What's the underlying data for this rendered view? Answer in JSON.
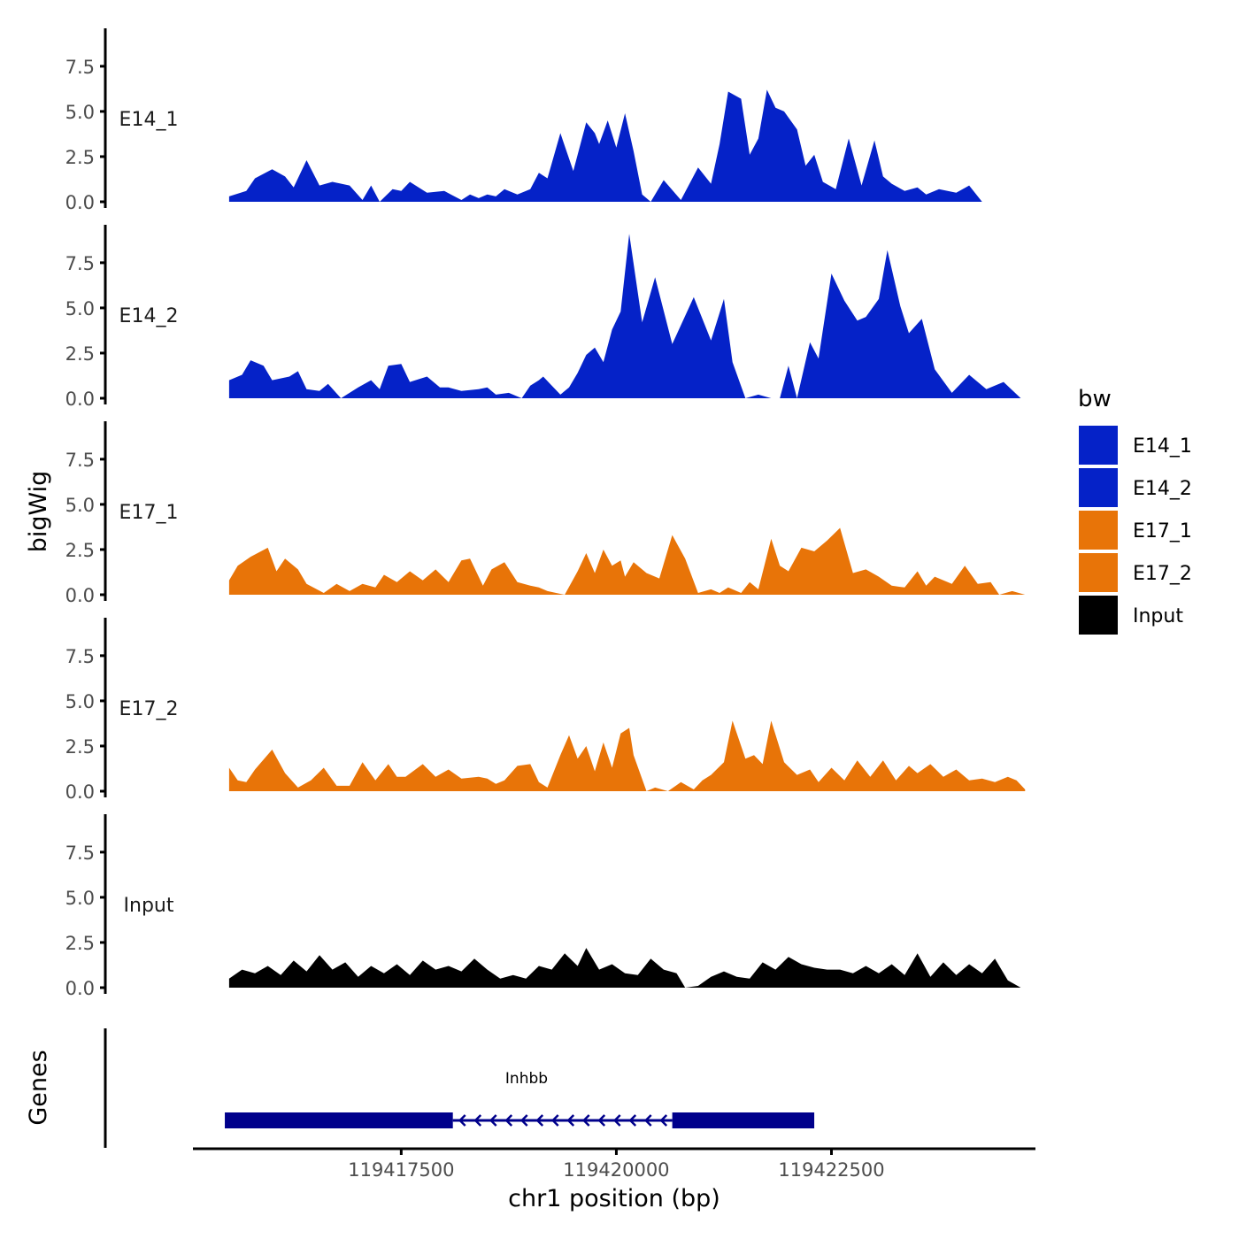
{
  "chart_data": {
    "type": "area",
    "ylabel": "bigWig",
    "xlabel": "chr1 position (bp)",
    "x_range": [
      119415100,
      119424850
    ],
    "ylim": [
      0,
      9.6
    ],
    "y_ticks": [
      0,
      2.5,
      5,
      7.5
    ],
    "y_tick_labels": [
      "0.0",
      "2.5",
      "5.0",
      "7.5"
    ],
    "x_ticks": [
      119417500,
      119420000,
      119422500
    ],
    "x_tick_labels": [
      "119417500",
      "119420000",
      "119422500"
    ],
    "legend": {
      "title": "bw",
      "position": "right",
      "entries": [
        {
          "label": "E14_1",
          "color": "#0522C8"
        },
        {
          "label": "E14_2",
          "color": "#0522C8"
        },
        {
          "label": "E17_1",
          "color": "#E87408"
        },
        {
          "label": "E17_2",
          "color": "#E87408"
        },
        {
          "label": "Input",
          "color": "#000000"
        }
      ]
    },
    "series": [
      {
        "name": "E14_1",
        "color": "#0522C8",
        "x": [
          119415500,
          119415700,
          119415800,
          119416000,
          119416150,
          119416250,
          119416400,
          119416550,
          119416700,
          119416900,
          119417050,
          119417150,
          119417250,
          119417400,
          119417500,
          119417600,
          119417800,
          119418000,
          119418200,
          119418300,
          119418400,
          119418500,
          119418600,
          119418700,
          119418850,
          119419000,
          119419100,
          119419200,
          119419350,
          119419500,
          119419650,
          119419750,
          119419800,
          119419900,
          119420000,
          119420100,
          119420200,
          119420300,
          119420400,
          119420550,
          119420750,
          119420950,
          119421100,
          119421200,
          119421300,
          119421450,
          119421550,
          119421650,
          119421750,
          119421850,
          119421950,
          119422100,
          119422200,
          119422300,
          119422400,
          119422550,
          119422700,
          119422850,
          119423000,
          119423100,
          119423200,
          119423350,
          119423500,
          119423600,
          119423750,
          119423950,
          119424100,
          119424250,
          119424450,
          119424650
        ],
        "values": [
          0.3,
          0.6,
          1.3,
          1.8,
          1.4,
          0.8,
          2.3,
          0.9,
          1.1,
          0.9,
          0.1,
          0.9,
          0.0,
          0.7,
          0.6,
          1.1,
          0.5,
          0.6,
          0.1,
          0.4,
          0.2,
          0.4,
          0.3,
          0.7,
          0.4,
          0.7,
          1.6,
          1.3,
          3.8,
          1.7,
          4.4,
          3.8,
          3.2,
          4.5,
          3.0,
          4.9,
          2.8,
          0.4,
          0.0,
          1.2,
          0.1,
          1.9,
          1.0,
          3.2,
          6.1,
          5.7,
          2.6,
          3.5,
          6.2,
          5.2,
          5.0,
          4.0,
          2.0,
          2.6,
          1.1,
          0.7,
          3.5,
          0.9,
          3.4,
          1.4,
          1.0,
          0.6,
          0.8,
          0.4,
          0.7,
          0.5,
          0.9,
          0.0,
          0.0,
          0.0
        ]
      },
      {
        "name": "E14_2",
        "color": "#0522C8",
        "x": [
          119415500,
          119415650,
          119415750,
          119415900,
          119416000,
          119416200,
          119416300,
          119416400,
          119416550,
          119416650,
          119416800,
          119417000,
          119417150,
          119417250,
          119417350,
          119417500,
          119417600,
          119417800,
          119417950,
          119418050,
          119418200,
          119418400,
          119418500,
          119418600,
          119418750,
          119418900,
          119419000,
          119419100,
          119419150,
          119419250,
          119419350,
          119419450,
          119419550,
          119419650,
          119419750,
          119419850,
          119419950,
          119420050,
          119420150,
          119420300,
          119420450,
          119420650,
          119420900,
          119421100,
          119421250,
          119421350,
          119421500,
          119421650,
          119421800,
          119421900,
          119422000,
          119422100,
          119422250,
          119422350,
          119422500,
          119422650,
          119422800,
          119422900,
          119423050,
          119423150,
          119423300,
          119423400,
          119423550,
          119423700,
          119423900,
          119424100,
          119424300,
          119424500,
          119424700
        ],
        "values": [
          1.0,
          1.3,
          2.1,
          1.8,
          1.0,
          1.2,
          1.5,
          0.5,
          0.4,
          0.8,
          0.0,
          0.6,
          1.0,
          0.5,
          1.8,
          1.9,
          0.9,
          1.2,
          0.6,
          0.6,
          0.4,
          0.5,
          0.6,
          0.2,
          0.3,
          0.0,
          0.7,
          1.0,
          1.2,
          0.7,
          0.2,
          0.6,
          1.4,
          2.4,
          2.8,
          2.0,
          3.8,
          4.8,
          9.1,
          4.2,
          6.7,
          3.0,
          5.6,
          3.2,
          5.5,
          2.0,
          0.0,
          0.2,
          0.0,
          0.0,
          1.8,
          0.0,
          3.1,
          2.2,
          6.9,
          5.4,
          4.3,
          4.5,
          5.5,
          8.2,
          5.1,
          3.6,
          4.4,
          1.6,
          0.3,
          1.3,
          0.5,
          0.9,
          0.0
        ]
      },
      {
        "name": "E17_1",
        "color": "#E87408",
        "x": [
          119415500,
          119415600,
          119415750,
          119415950,
          119416050,
          119416150,
          119416300,
          119416400,
          119416600,
          119416750,
          119416900,
          119417050,
          119417200,
          119417300,
          119417450,
          119417600,
          119417750,
          119417900,
          119418050,
          119418200,
          119418300,
          119418450,
          119418550,
          119418700,
          119418850,
          119419000,
          119419100,
          119419200,
          119419300,
          119419400,
          119419550,
          119419650,
          119419750,
          119419850,
          119419950,
          119420050,
          119420100,
          119420200,
          119420350,
          119420500,
          119420650,
          119420800,
          119420950,
          119421100,
          119421200,
          119421300,
          119421450,
          119421550,
          119421650,
          119421800,
          119421900,
          119422000,
          119422150,
          119422300,
          119422450,
          119422600,
          119422750,
          119422900,
          119423050,
          119423200,
          119423350,
          119423500,
          119423600,
          119423700,
          119423900,
          119424050,
          119424200,
          119424350,
          119424450,
          119424600,
          119424750
        ],
        "values": [
          0.8,
          1.6,
          2.1,
          2.6,
          1.3,
          2.0,
          1.4,
          0.6,
          0.1,
          0.6,
          0.2,
          0.6,
          0.4,
          1.1,
          0.7,
          1.3,
          0.8,
          1.4,
          0.7,
          1.9,
          2.0,
          0.5,
          1.4,
          1.8,
          0.7,
          0.5,
          0.4,
          0.2,
          0.1,
          0.0,
          1.3,
          2.3,
          1.2,
          2.5,
          1.6,
          1.9,
          1.0,
          1.8,
          1.2,
          0.9,
          3.3,
          2.0,
          0.1,
          0.3,
          0.1,
          0.4,
          0.1,
          0.7,
          0.3,
          3.1,
          1.6,
          1.3,
          2.6,
          2.4,
          3.0,
          3.7,
          1.2,
          1.4,
          1.0,
          0.5,
          0.4,
          1.3,
          0.5,
          1.0,
          0.6,
          1.6,
          0.6,
          0.7,
          0.0,
          0.2,
          0.0
        ]
      },
      {
        "name": "E17_2",
        "color": "#E87408",
        "x": [
          119415500,
          119415600,
          119415700,
          119415800,
          119416000,
          119416150,
          119416300,
          119416450,
          119416600,
          119416750,
          119416900,
          119417050,
          119417200,
          119417350,
          119417450,
          119417550,
          119417750,
          119417900,
          119418050,
          119418200,
          119418400,
          119418500,
          119418600,
          119418700,
          119418850,
          119419000,
          119419100,
          119419200,
          119419350,
          119419450,
          119419550,
          119419650,
          119419750,
          119419850,
          119419950,
          119420050,
          119420150,
          119420200,
          119420350,
          119420450,
          119420600,
          119420750,
          119420900,
          119421000,
          119421100,
          119421250,
          119421350,
          119421500,
          119421600,
          119421700,
          119421800,
          119421950,
          119422100,
          119422250,
          119422350,
          119422500,
          119422650,
          119422800,
          119422950,
          119423100,
          119423250,
          119423400,
          119423500,
          119423650,
          119423800,
          119423950,
          119424100,
          119424250,
          119424400,
          119424550,
          119424650,
          119424750
        ],
        "values": [
          1.3,
          0.6,
          0.5,
          1.2,
          2.3,
          1.0,
          0.2,
          0.6,
          1.3,
          0.3,
          0.3,
          1.6,
          0.6,
          1.5,
          0.8,
          0.8,
          1.5,
          0.8,
          1.2,
          0.7,
          0.8,
          0.7,
          0.4,
          0.6,
          1.4,
          1.5,
          0.5,
          0.2,
          2.0,
          3.1,
          1.8,
          2.5,
          1.1,
          2.7,
          1.3,
          3.2,
          3.5,
          2.0,
          0.0,
          0.2,
          0.0,
          0.5,
          0.1,
          0.6,
          0.9,
          1.6,
          3.9,
          1.8,
          2.0,
          1.5,
          3.9,
          1.6,
          0.9,
          1.2,
          0.5,
          1.3,
          0.6,
          1.7,
          0.8,
          1.7,
          0.6,
          1.4,
          1.0,
          1.5,
          0.8,
          1.2,
          0.6,
          0.7,
          0.5,
          0.8,
          0.6,
          0.1
        ]
      },
      {
        "name": "Input",
        "color": "#000000",
        "x": [
          119415500,
          119415650,
          119415800,
          119415950,
          119416100,
          119416250,
          119416400,
          119416550,
          119416700,
          119416850,
          119417000,
          119417150,
          119417300,
          119417450,
          119417600,
          119417750,
          119417900,
          119418050,
          119418200,
          119418350,
          119418500,
          119418650,
          119418800,
          119418950,
          119419100,
          119419250,
          119419400,
          119419550,
          119419650,
          119419800,
          119419950,
          119420100,
          119420250,
          119420400,
          119420550,
          119420700,
          119420800,
          119420950,
          119421100,
          119421250,
          119421400,
          119421550,
          119421700,
          119421850,
          119422000,
          119422150,
          119422300,
          119422450,
          119422600,
          119422750,
          119422900,
          119423050,
          119423200,
          119423350,
          119423500,
          119423650,
          119423800,
          119423950,
          119424100,
          119424250,
          119424400,
          119424550,
          119424700
        ],
        "values": [
          0.5,
          1.0,
          0.8,
          1.2,
          0.7,
          1.5,
          0.9,
          1.8,
          1.0,
          1.4,
          0.6,
          1.2,
          0.8,
          1.3,
          0.7,
          1.5,
          1.0,
          1.2,
          0.9,
          1.6,
          1.0,
          0.5,
          0.7,
          0.5,
          1.2,
          1.0,
          1.9,
          1.2,
          2.2,
          1.0,
          1.3,
          0.8,
          0.7,
          1.6,
          1.0,
          0.8,
          0.0,
          0.1,
          0.6,
          0.9,
          0.6,
          0.5,
          1.4,
          1.0,
          1.7,
          1.3,
          1.1,
          1.0,
          1.0,
          0.8,
          1.2,
          0.8,
          1.3,
          0.7,
          1.9,
          0.6,
          1.4,
          0.7,
          1.3,
          0.8,
          1.6,
          0.4,
          0.0
        ]
      }
    ],
    "genes_track": {
      "label": "Genes",
      "gene_name": "Inhbb",
      "strand": "-",
      "color": "#00008B",
      "exons": [
        [
          119415450,
          119418100
        ],
        [
          119420650,
          119422300
        ]
      ],
      "intron": [
        119418100,
        119420650
      ]
    }
  }
}
